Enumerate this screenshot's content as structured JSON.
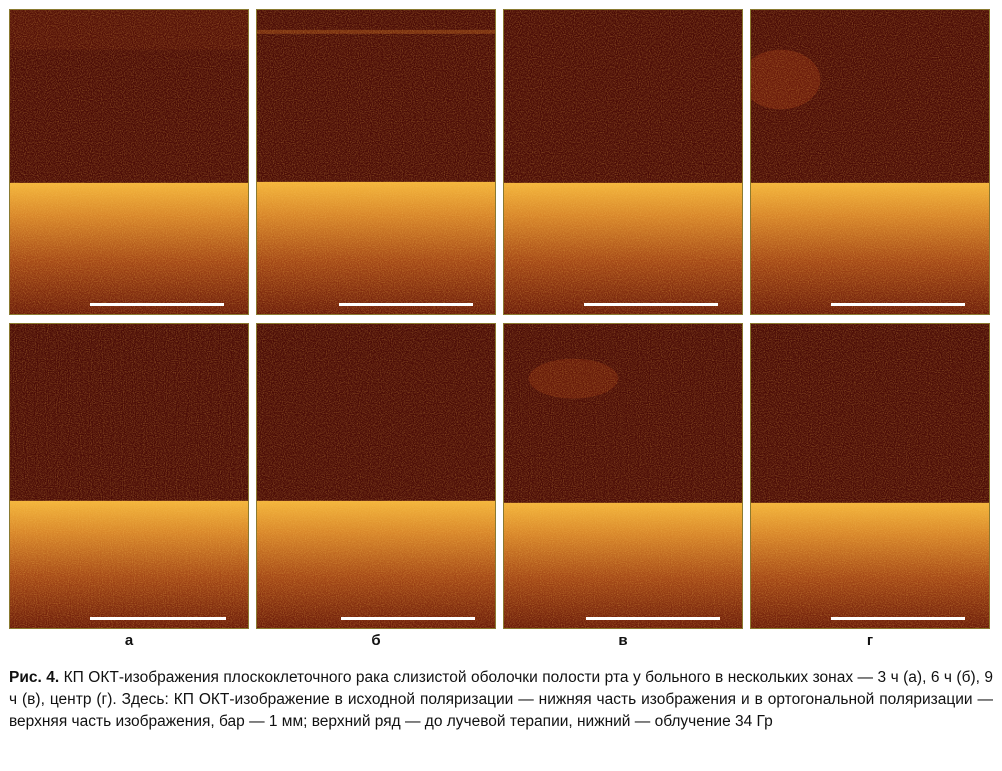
{
  "figure": {
    "columns": [
      {
        "label": "а"
      },
      {
        "label": "б"
      },
      {
        "label": "в"
      },
      {
        "label": "г"
      }
    ],
    "rows": [
      "before",
      "after"
    ]
  },
  "caption": {
    "label": "Рис. 4.",
    "text": "КП ОКТ-изображения плоскоклеточного рака слизистой оболочки полости рта у больного в нескольких зонах — 3 ч (а), 6 ч (б), 9 ч (в), центр (г). Здесь: КП ОКТ-изображение в исходной поляризации — нижняя часть изображения и в ортогональной поляризации — верхняя часть изображения, бар — 1 мм; верхний ряд — до лучевой терапии, нижний — облучение 34 Гр"
  },
  "colors": {
    "background_dark": "#4a0b06",
    "signal_bright": "#f2b23a",
    "scalebar": "#ffffff"
  }
}
